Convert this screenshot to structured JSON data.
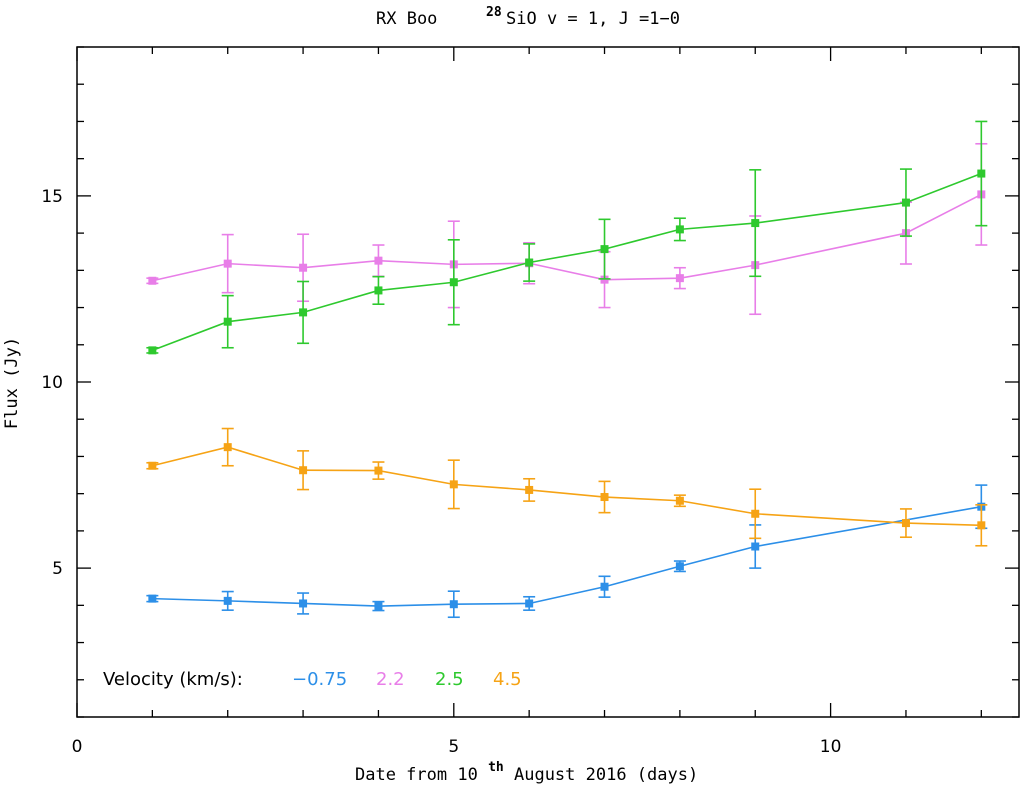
{
  "chart_data": {
    "type": "line",
    "title": {
      "star": "RX Boo",
      "isotope_sup": "28",
      "line": "SiO v = 1, J =1−0"
    },
    "xlabel": {
      "prefix": "Date from 10",
      "sup": "th",
      "suffix": " August 2016 (days)"
    },
    "ylabel": "Flux (Jy)",
    "xlim": [
      0,
      12.5
    ],
    "ylim": [
      1,
      19
    ],
    "xticks": [
      0,
      5,
      10
    ],
    "xtick_labels": [
      "0",
      "5",
      "10"
    ],
    "yticks": [
      5,
      10,
      15
    ],
    "ytick_labels": [
      "5",
      "10",
      "15"
    ],
    "legend": {
      "title": "Velocity (km/s):",
      "position": "bottom-left"
    },
    "series": [
      {
        "name": "−0.75",
        "color": "#2c8fe8",
        "x": [
          1,
          2,
          3,
          4,
          5,
          6,
          7,
          8,
          9,
          12
        ],
        "y": [
          4.18,
          4.12,
          4.05,
          3.98,
          4.03,
          4.05,
          4.5,
          5.05,
          5.58,
          6.65
        ],
        "err": [
          0.08,
          0.25,
          0.28,
          0.12,
          0.35,
          0.18,
          0.28,
          0.14,
          0.58,
          0.58
        ]
      },
      {
        "name": "2.2",
        "color": "#e87ee8",
        "x": [
          1,
          2,
          3,
          4,
          5,
          6,
          7,
          8,
          9,
          11,
          12
        ],
        "y": [
          12.72,
          13.18,
          13.07,
          13.26,
          13.16,
          13.19,
          12.75,
          12.79,
          13.14,
          14.0,
          15.04
        ],
        "err": [
          0.07,
          0.78,
          0.9,
          0.42,
          1.16,
          0.55,
          0.75,
          0.28,
          1.32,
          0.83,
          1.36
        ]
      },
      {
        "name": "2.5",
        "color": "#2ec92e",
        "x": [
          1,
          2,
          3,
          4,
          5,
          6,
          7,
          8,
          9,
          11,
          12
        ],
        "y": [
          10.85,
          11.62,
          11.87,
          12.46,
          12.68,
          13.21,
          13.57,
          14.1,
          14.27,
          14.82,
          15.6
        ],
        "err": [
          0.07,
          0.7,
          0.83,
          0.37,
          1.14,
          0.5,
          0.8,
          0.3,
          1.43,
          0.9,
          1.4
        ]
      },
      {
        "name": "4.5",
        "color": "#f6a315",
        "x": [
          1,
          2,
          3,
          4,
          5,
          6,
          7,
          8,
          9,
          11,
          12
        ],
        "y": [
          7.75,
          8.25,
          7.63,
          7.62,
          7.25,
          7.1,
          6.91,
          6.81,
          6.46,
          6.21,
          6.15
        ],
        "err": [
          0.08,
          0.5,
          0.52,
          0.23,
          0.65,
          0.3,
          0.42,
          0.15,
          0.66,
          0.38,
          0.55
        ]
      }
    ]
  }
}
